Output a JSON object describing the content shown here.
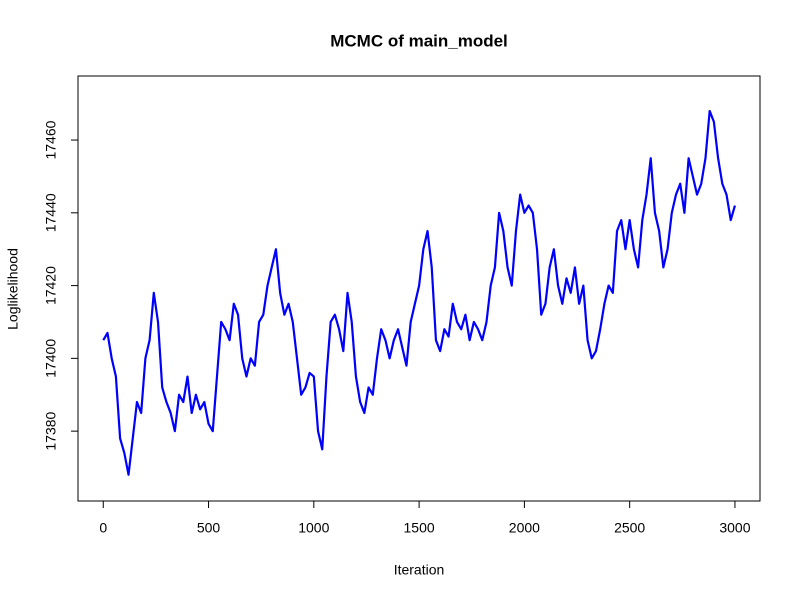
{
  "chart_data": {
    "type": "line",
    "title": "MCMC of main_model",
    "x_label": "Iteration",
    "y_label": "Loglikelihood",
    "x": [
      0,
      20,
      40,
      60,
      80,
      100,
      120,
      140,
      160,
      180,
      200,
      220,
      240,
      260,
      280,
      300,
      320,
      340,
      360,
      380,
      400,
      420,
      440,
      460,
      480,
      500,
      520,
      540,
      560,
      580,
      600,
      620,
      640,
      660,
      680,
      700,
      720,
      740,
      760,
      780,
      800,
      820,
      840,
      860,
      880,
      900,
      920,
      940,
      960,
      980,
      1000,
      1020,
      1040,
      1060,
      1080,
      1100,
      1120,
      1140,
      1160,
      1180,
      1200,
      1220,
      1240,
      1260,
      1280,
      1300,
      1320,
      1340,
      1360,
      1380,
      1400,
      1420,
      1440,
      1460,
      1480,
      1500,
      1520,
      1540,
      1560,
      1580,
      1600,
      1620,
      1640,
      1660,
      1680,
      1700,
      1720,
      1740,
      1760,
      1780,
      1800,
      1820,
      1840,
      1860,
      1880,
      1900,
      1920,
      1940,
      1960,
      1980,
      2000,
      2020,
      2040,
      2060,
      2080,
      2100,
      2120,
      2140,
      2160,
      2180,
      2200,
      2220,
      2240,
      2260,
      2280,
      2300,
      2320,
      2340,
      2360,
      2380,
      2400,
      2420,
      2440,
      2460,
      2480,
      2500,
      2520,
      2540,
      2560,
      2580,
      2600,
      2620,
      2640,
      2660,
      2680,
      2700,
      2720,
      2740,
      2760,
      2780,
      2800,
      2820,
      2840,
      2860,
      2880,
      2900,
      2920,
      2940,
      2960,
      2980,
      3000
    ],
    "series": [
      {
        "color": "#0000ff",
        "values": [
          17405,
          17407,
          17400,
          17395,
          17378,
          17374,
          17368,
          17378,
          17388,
          17385,
          17400,
          17405,
          17418,
          17410,
          17392,
          17388,
          17385,
          17380,
          17390,
          17388,
          17395,
          17385,
          17390,
          17386,
          17388,
          17382,
          17380,
          17395,
          17410,
          17408,
          17405,
          17415,
          17412,
          17400,
          17395,
          17400,
          17398,
          17410,
          17412,
          17420,
          17425,
          17430,
          17418,
          17412,
          17415,
          17410,
          17400,
          17390,
          17392,
          17396,
          17395,
          17380,
          17375,
          17395,
          17410,
          17412,
          17408,
          17402,
          17418,
          17410,
          17395,
          17388,
          17385,
          17392,
          17390,
          17400,
          17408,
          17405,
          17400,
          17405,
          17408,
          17403,
          17398,
          17410,
          17415,
          17420,
          17430,
          17435,
          17425,
          17405,
          17402,
          17408,
          17406,
          17415,
          17410,
          17408,
          17412,
          17405,
          17410,
          17408,
          17405,
          17410,
          17420,
          17425,
          17440,
          17435,
          17425,
          17420,
          17435,
          17445,
          17440,
          17442,
          17440,
          17430,
          17412,
          17415,
          17425,
          17430,
          17420,
          17415,
          17422,
          17418,
          17425,
          17415,
          17420,
          17405,
          17400,
          17402,
          17408,
          17415,
          17420,
          17418,
          17435,
          17438,
          17430,
          17438,
          17430,
          17425,
          17438,
          17445,
          17455,
          17440,
          17435,
          17425,
          17430,
          17440,
          17445,
          17448,
          17440,
          17455,
          17450,
          17445,
          17448,
          17455,
          17468,
          17465,
          17455,
          17448,
          17445,
          17438,
          17442
        ]
      }
    ],
    "xlim": [
      -120,
      3119
    ],
    "xticks": [
      0,
      500,
      1000,
      1500,
      2000,
      2500,
      3000
    ],
    "ylim": [
      17360.8,
      17477.6
    ],
    "yticks": [
      17380,
      17400,
      17420,
      17440,
      17460
    ],
    "grid": false
  }
}
